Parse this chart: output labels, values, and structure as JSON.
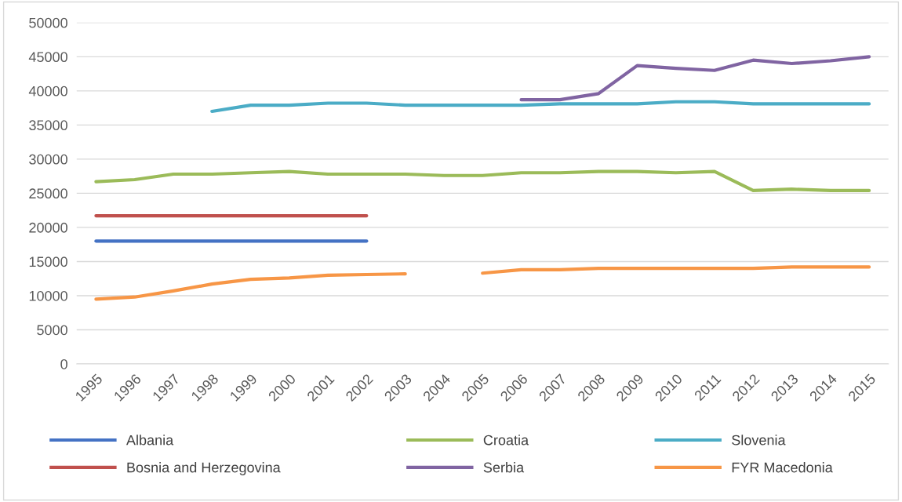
{
  "chart_data": {
    "type": "line",
    "categories": [
      "1995",
      "1996",
      "1997",
      "1998",
      "1999",
      "2000",
      "2001",
      "2002",
      "2003",
      "2004",
      "2005",
      "2006",
      "2007",
      "2008",
      "2009",
      "2010",
      "2011",
      "2012",
      "2013",
      "2014",
      "2015"
    ],
    "series": [
      {
        "name": "Albania",
        "color": "#4472c4",
        "values": [
          18000,
          18000,
          18000,
          18000,
          18000,
          18000,
          18000,
          18000,
          null,
          null,
          null,
          null,
          null,
          null,
          null,
          null,
          null,
          null,
          null,
          null,
          null
        ]
      },
      {
        "name": "Bosnia and Herzegovina",
        "color": "#c0504d",
        "values": [
          21700,
          21700,
          21700,
          21700,
          21700,
          21700,
          21700,
          21700,
          null,
          null,
          null,
          null,
          null,
          null,
          null,
          null,
          null,
          null,
          null,
          null,
          null
        ]
      },
      {
        "name": "Croatia",
        "color": "#9bbb59",
        "values": [
          26700,
          27000,
          27800,
          27800,
          28000,
          28200,
          27800,
          27800,
          27800,
          27600,
          27600,
          28000,
          28000,
          28200,
          28200,
          28000,
          28200,
          25400,
          25600,
          25400,
          25400
        ]
      },
      {
        "name": "Serbia",
        "color": "#8064a2",
        "values": [
          null,
          null,
          null,
          null,
          null,
          null,
          null,
          null,
          null,
          null,
          null,
          38700,
          38700,
          39600,
          43700,
          43300,
          43000,
          44500,
          44000,
          44400,
          45000
        ]
      },
      {
        "name": "Slovenia",
        "color": "#4bacc6",
        "values": [
          null,
          null,
          null,
          37000,
          37900,
          37900,
          38200,
          38200,
          37900,
          37900,
          37900,
          37900,
          38100,
          38100,
          38100,
          38400,
          38400,
          38100,
          38100,
          38100,
          38100
        ]
      },
      {
        "name": "FYR Macedonia",
        "color": "#f79646",
        "values": [
          9500,
          9800,
          10700,
          11700,
          12400,
          12600,
          13000,
          13100,
          13200,
          null,
          13300,
          13800,
          13800,
          14000,
          14000,
          14000,
          14000,
          14000,
          14200,
          14200,
          14200
        ]
      }
    ],
    "ylim": [
      0,
      50000
    ],
    "yticks": [
      0,
      5000,
      10000,
      15000,
      20000,
      25000,
      30000,
      35000,
      40000,
      45000,
      50000
    ],
    "grid": "y",
    "legend": "bottom"
  }
}
